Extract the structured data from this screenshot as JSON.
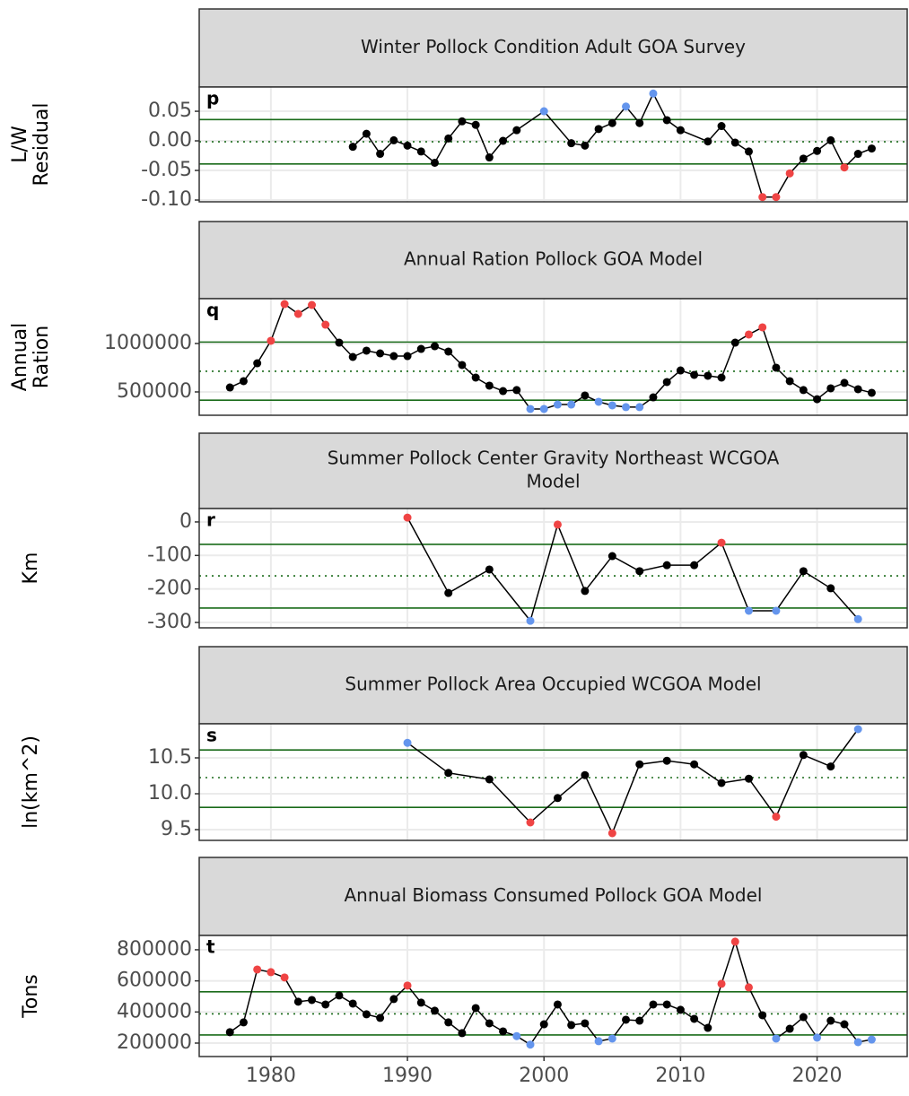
{
  "chart_data": [
    {
      "type": "line",
      "title": [
        "Winter Pollock Condition Adult GOA Survey"
      ],
      "label": "p",
      "ylabel": [
        "L/W",
        "Residual"
      ],
      "x": [
        1986,
        1987,
        1988,
        1989,
        1990,
        1991,
        1992,
        1993,
        1994,
        1995,
        1996,
        1997,
        1998,
        2000,
        2002,
        2003,
        2004,
        2005,
        2006,
        2007,
        2008,
        2009,
        2010,
        2012,
        2013,
        2014,
        2015,
        2016,
        2017,
        2018,
        2019,
        2020,
        2021,
        2022,
        2023,
        2024
      ],
      "values": [
        -0.01,
        0.012,
        -0.022,
        0.001,
        -0.008,
        -0.018,
        -0.037,
        0.004,
        0.033,
        0.027,
        -0.028,
        0.0,
        0.018,
        0.05,
        -0.004,
        -0.008,
        0.02,
        0.03,
        0.058,
        0.03,
        0.08,
        0.035,
        0.018,
        -0.001,
        0.025,
        -0.003,
        -0.018,
        -0.095,
        -0.095,
        -0.055,
        -0.03,
        -0.017,
        0.001,
        -0.045,
        -0.022,
        -0.013
      ],
      "hlines": {
        "upper": 0.036,
        "mean": -0.0015,
        "lower": -0.039
      },
      "color": "#000000",
      "high_color": "#6495ed",
      "low_color": "#ef4444",
      "hline_color": "#1a6b1a",
      "xlim": [
        1974.75,
        2026.6
      ],
      "xticks": [
        1980,
        1990,
        2000,
        2010,
        2020
      ],
      "ylim": [
        -0.103,
        0.091
      ],
      "yticks": [
        {
          "value": 0.05,
          "label": "0.05"
        },
        {
          "value": 0,
          "label": "0.00"
        },
        {
          "value": -0.05,
          "label": "-0.05"
        },
        {
          "value": -0.1,
          "label": "-0.10"
        }
      ],
      "grid": true
    },
    {
      "type": "line",
      "title": [
        "Annual Ration Pollock GOA Model"
      ],
      "label": "q",
      "ylabel": [
        "Annual",
        "Ration"
      ],
      "x": [
        1977,
        1978,
        1979,
        1980,
        1981,
        1982,
        1983,
        1984,
        1985,
        1986,
        1987,
        1988,
        1989,
        1990,
        1991,
        1992,
        1993,
        1994,
        1995,
        1996,
        1997,
        1998,
        1999,
        2000,
        2001,
        2002,
        2003,
        2004,
        2005,
        2006,
        2007,
        2008,
        2009,
        2010,
        2011,
        2012,
        2013,
        2014,
        2015,
        2016,
        2017,
        2018,
        2019,
        2020,
        2021,
        2022,
        2023,
        2024
      ],
      "values": [
        546000,
        611000,
        796000,
        1028000,
        1407000,
        1306000,
        1398000,
        1194000,
        1009000,
        861000,
        926000,
        898000,
        870000,
        870000,
        944000,
        972000,
        917000,
        778000,
        648000,
        565000,
        509000,
        519000,
        324000,
        324000,
        370000,
        370000,
        463000,
        398000,
        361000,
        343000,
        343000,
        444000,
        602000,
        722000,
        676000,
        667000,
        648000,
        1009000,
        1093000,
        1167000,
        750000,
        611000,
        519000,
        425000,
        537000,
        593000,
        528000,
        491000
      ],
      "hlines": {
        "upper": 1015000,
        "mean": 713000,
        "lower": 415000
      },
      "color": "#000000",
      "high_color": "#ef4444",
      "low_color": "#6495ed",
      "hline_color": "#1a6b1a",
      "xlim": [
        1974.75,
        2026.6
      ],
      "xticks": [
        1980,
        1990,
        2000,
        2010,
        2020
      ],
      "ylim": [
        259000,
        1463000
      ],
      "yticks": [
        500000,
        1000000
      ],
      "grid": true
    },
    {
      "type": "line",
      "title": [
        "Summer Pollock Center Gravity Northeast WCGOA",
        "Model"
      ],
      "label": "r",
      "ylabel": [
        "Km"
      ],
      "x": [
        1990,
        1993,
        1996,
        1999,
        2001,
        2003,
        2005,
        2007,
        2009,
        2011,
        2013,
        2015,
        2017,
        2019,
        2021,
        2023
      ],
      "values": [
        13,
        -212,
        -142,
        -295,
        -8,
        -206,
        -102,
        -147,
        -129,
        -129,
        -62,
        -265,
        -265,
        -147,
        -198,
        -290
      ],
      "hlines": {
        "upper": -67,
        "mean": -161,
        "lower": -257
      },
      "color": "#000000",
      "high_color": "#ef4444",
      "low_color": "#6495ed",
      "hline_color": "#1a6b1a",
      "xlim": [
        1974.75,
        2026.6
      ],
      "xticks": [
        1980,
        1990,
        2000,
        2010,
        2020
      ],
      "ylim": [
        -316,
        40
      ],
      "yticks": [
        0,
        -100,
        -200,
        -300
      ],
      "grid": true
    },
    {
      "type": "line",
      "title": [
        "Summer Pollock Area Occupied WCGOA Model"
      ],
      "label": "s",
      "ylabel": [
        "ln(km^2)"
      ],
      "x": [
        1990,
        1993,
        1996,
        1999,
        2001,
        2003,
        2005,
        2007,
        2009,
        2011,
        2013,
        2015,
        2017,
        2019,
        2021,
        2023
      ],
      "values": [
        10.71,
        10.29,
        10.2,
        9.6,
        9.94,
        10.26,
        9.45,
        10.41,
        10.46,
        10.41,
        10.15,
        10.21,
        9.68,
        10.54,
        10.38,
        10.9
      ],
      "hlines": {
        "upper": 10.61,
        "mean": 10.225,
        "lower": 9.81
      },
      "color": "#000000",
      "high_color": "#6495ed",
      "low_color": "#ef4444",
      "hline_color": "#1a6b1a",
      "xlim": [
        1974.75,
        2026.6
      ],
      "xticks": [
        1980,
        1990,
        2000,
        2010,
        2020
      ],
      "ylim": [
        9.35,
        10.975
      ],
      "yticks": [
        10.5,
        {
          "value": 10,
          "label": "10.0"
        },
        9.5
      ],
      "grid": true
    },
    {
      "type": "line",
      "title": [
        "Annual Biomass Consumed Pollock GOA Model"
      ],
      "label": "t",
      "ylabel": [
        "Tons"
      ],
      "x": [
        1977,
        1978,
        1979,
        1980,
        1981,
        1982,
        1983,
        1984,
        1985,
        1986,
        1987,
        1988,
        1989,
        1990,
        1991,
        1992,
        1993,
        1994,
        1995,
        1996,
        1997,
        1998,
        1999,
        2000,
        2001,
        2002,
        2003,
        2004,
        2005,
        2006,
        2007,
        2008,
        2009,
        2010,
        2011,
        2012,
        2013,
        2014,
        2015,
        2016,
        2017,
        2018,
        2019,
        2020,
        2021,
        2022,
        2023,
        2024
      ],
      "values": [
        270000,
        333000,
        673000,
        656000,
        622000,
        466000,
        477000,
        448000,
        506000,
        454000,
        385000,
        362000,
        483000,
        570000,
        460000,
        408000,
        333000,
        264000,
        425000,
        327000,
        275000,
        245000,
        190000,
        321000,
        448000,
        316000,
        327000,
        212000,
        229000,
        350000,
        344000,
        448000,
        448000,
        414000,
        356000,
        298000,
        581000,
        852000,
        558000,
        379000,
        229000,
        292000,
        367000,
        235000,
        344000,
        321000,
        206000,
        223000
      ],
      "hlines": {
        "upper": 530000,
        "mean": 388000,
        "lower": 252000
      },
      "color": "#000000",
      "high_color": "#ef4444",
      "low_color": "#6495ed",
      "hline_color": "#1a6b1a",
      "xlim": [
        1974.75,
        2026.6
      ],
      "xticks": [
        1980,
        1990,
        2000,
        2010,
        2020
      ],
      "ylim": [
        113500,
        892000
      ],
      "yticks": [
        200000,
        400000,
        600000,
        800000
      ],
      "grid": true
    }
  ]
}
